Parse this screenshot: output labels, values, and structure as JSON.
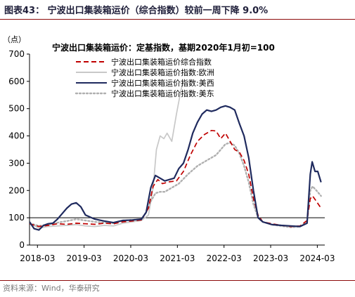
{
  "figure_title": "图表43：  宁波出口集装箱运价（综合指数）较前一周下降 9.0%",
  "source_note": "资料来源：Wind，华泰研究",
  "colors": {
    "composite": "#c00000",
    "europe": "#c8c8c8",
    "us_west": "#1f2a5e",
    "us_east": "#b0b0b0",
    "rule": "#8c0a0a"
  },
  "chart_data": {
    "type": "line",
    "title": "宁波出口集装箱运价：定基指数，基期2020年1月初=100",
    "ylabel": "（点）",
    "ylim": [
      0,
      700
    ],
    "yticks": [
      0,
      100,
      200,
      300,
      400,
      500,
      600,
      700
    ],
    "xlim": [
      2018.0,
      2024.33
    ],
    "xticks": [
      {
        "label": "2018-03",
        "x": 2018.17
      },
      {
        "label": "2019-03",
        "x": 2019.17
      },
      {
        "label": "2020-03",
        "x": 2020.17
      },
      {
        "label": "2021-03",
        "x": 2021.17
      },
      {
        "label": "2022-03",
        "x": 2022.17
      },
      {
        "label": "2023-03",
        "x": 2023.17
      },
      {
        "label": "2024-03",
        "x": 2024.17
      }
    ],
    "reference_line": 100,
    "legend_position": "top",
    "series": [
      {
        "name": "宁波出口集装箱运价综合指数",
        "style": "dashed",
        "color": "#c00000",
        "points": [
          [
            2018.0,
            78
          ],
          [
            2018.2,
            68
          ],
          [
            2018.4,
            72
          ],
          [
            2018.6,
            78
          ],
          [
            2018.8,
            76
          ],
          [
            2019.0,
            80
          ],
          [
            2019.2,
            78
          ],
          [
            2019.4,
            76
          ],
          [
            2019.6,
            80
          ],
          [
            2019.8,
            78
          ],
          [
            2020.0,
            85
          ],
          [
            2020.2,
            88
          ],
          [
            2020.4,
            92
          ],
          [
            2020.55,
            135
          ],
          [
            2020.65,
            215
          ],
          [
            2020.75,
            240
          ],
          [
            2020.85,
            225
          ],
          [
            2021.0,
            232
          ],
          [
            2021.15,
            235
          ],
          [
            2021.3,
            270
          ],
          [
            2021.45,
            330
          ],
          [
            2021.6,
            380
          ],
          [
            2021.75,
            405
          ],
          [
            2021.9,
            420
          ],
          [
            2022.0,
            418
          ],
          [
            2022.1,
            390
          ],
          [
            2022.2,
            410
          ],
          [
            2022.3,
            380
          ],
          [
            2022.4,
            350
          ],
          [
            2022.5,
            340
          ],
          [
            2022.6,
            310
          ],
          [
            2022.7,
            260
          ],
          [
            2022.8,
            170
          ],
          [
            2022.9,
            110
          ],
          [
            2023.0,
            85
          ],
          [
            2023.2,
            78
          ],
          [
            2023.4,
            72
          ],
          [
            2023.6,
            68
          ],
          [
            2023.8,
            70
          ],
          [
            2023.95,
            90
          ],
          [
            2024.02,
            170
          ],
          [
            2024.07,
            180
          ],
          [
            2024.15,
            160
          ],
          [
            2024.25,
            135
          ]
        ]
      },
      {
        "name": "宁波出口集装箱运价指数:欧洲",
        "style": "solid",
        "color": "#c8c8c8",
        "points": [
          [
            2018.0,
            80
          ],
          [
            2018.2,
            62
          ],
          [
            2018.4,
            68
          ],
          [
            2018.6,
            70
          ],
          [
            2018.8,
            72
          ],
          [
            2019.0,
            75
          ],
          [
            2019.2,
            70
          ],
          [
            2019.4,
            68
          ],
          [
            2019.6,
            72
          ],
          [
            2019.8,
            70
          ],
          [
            2020.0,
            80
          ],
          [
            2020.2,
            85
          ],
          [
            2020.4,
            90
          ],
          [
            2020.55,
            110
          ],
          [
            2020.65,
            210
          ],
          [
            2020.72,
            350
          ],
          [
            2020.8,
            400
          ],
          [
            2020.88,
            390
          ],
          [
            2020.95,
            410
          ],
          [
            2021.05,
            380
          ],
          [
            2021.15,
            480
          ],
          [
            2021.25,
            570
          ],
          [
            2021.3,
            600
          ]
        ]
      },
      {
        "name": "宁波出口集装箱运价指数:美西",
        "style": "solid",
        "color": "#1f2a5e",
        "points": [
          [
            2018.0,
            85
          ],
          [
            2018.1,
            60
          ],
          [
            2018.2,
            55
          ],
          [
            2018.3,
            72
          ],
          [
            2018.4,
            78
          ],
          [
            2018.5,
            80
          ],
          [
            2018.6,
            95
          ],
          [
            2018.7,
            115
          ],
          [
            2018.8,
            135
          ],
          [
            2018.9,
            150
          ],
          [
            2019.0,
            155
          ],
          [
            2019.1,
            140
          ],
          [
            2019.2,
            110
          ],
          [
            2019.4,
            95
          ],
          [
            2019.6,
            88
          ],
          [
            2019.8,
            82
          ],
          [
            2020.0,
            90
          ],
          [
            2020.2,
            92
          ],
          [
            2020.4,
            95
          ],
          [
            2020.5,
            120
          ],
          [
            2020.6,
            210
          ],
          [
            2020.7,
            255
          ],
          [
            2020.8,
            245
          ],
          [
            2020.9,
            235
          ],
          [
            2021.0,
            240
          ],
          [
            2021.1,
            245
          ],
          [
            2021.2,
            280
          ],
          [
            2021.3,
            300
          ],
          [
            2021.4,
            350
          ],
          [
            2021.5,
            410
          ],
          [
            2021.6,
            450
          ],
          [
            2021.7,
            480
          ],
          [
            2021.8,
            495
          ],
          [
            2021.9,
            490
          ],
          [
            2022.0,
            495
          ],
          [
            2022.1,
            505
          ],
          [
            2022.2,
            510
          ],
          [
            2022.3,
            505
          ],
          [
            2022.4,
            495
          ],
          [
            2022.5,
            445
          ],
          [
            2022.6,
            400
          ],
          [
            2022.7,
            320
          ],
          [
            2022.8,
            200
          ],
          [
            2022.9,
            100
          ],
          [
            2023.0,
            85
          ],
          [
            2023.2,
            75
          ],
          [
            2023.4,
            72
          ],
          [
            2023.6,
            70
          ],
          [
            2023.8,
            68
          ],
          [
            2023.95,
            80
          ],
          [
            2024.02,
            260
          ],
          [
            2024.06,
            305
          ],
          [
            2024.12,
            270
          ],
          [
            2024.18,
            270
          ],
          [
            2024.25,
            230
          ]
        ]
      },
      {
        "name": "宁波出口集装箱运价指数:美东",
        "style": "dotted",
        "color": "#b0b0b0",
        "points": [
          [
            2018.0,
            80
          ],
          [
            2018.2,
            70
          ],
          [
            2018.4,
            75
          ],
          [
            2018.6,
            82
          ],
          [
            2018.8,
            88
          ],
          [
            2019.0,
            95
          ],
          [
            2019.2,
            90
          ],
          [
            2019.4,
            85
          ],
          [
            2019.6,
            82
          ],
          [
            2019.8,
            80
          ],
          [
            2020.0,
            90
          ],
          [
            2020.2,
            92
          ],
          [
            2020.4,
            95
          ],
          [
            2020.5,
            120
          ],
          [
            2020.6,
            160
          ],
          [
            2020.7,
            190
          ],
          [
            2020.8,
            195
          ],
          [
            2020.9,
            195
          ],
          [
            2021.0,
            205
          ],
          [
            2021.2,
            225
          ],
          [
            2021.4,
            260
          ],
          [
            2021.6,
            290
          ],
          [
            2021.8,
            310
          ],
          [
            2022.0,
            330
          ],
          [
            2022.2,
            370
          ],
          [
            2022.3,
            375
          ],
          [
            2022.4,
            365
          ],
          [
            2022.5,
            335
          ],
          [
            2022.6,
            290
          ],
          [
            2022.7,
            230
          ],
          [
            2022.8,
            150
          ],
          [
            2022.9,
            100
          ],
          [
            2023.0,
            85
          ],
          [
            2023.2,
            75
          ],
          [
            2023.4,
            70
          ],
          [
            2023.6,
            65
          ],
          [
            2023.8,
            68
          ],
          [
            2023.95,
            85
          ],
          [
            2024.02,
            200
          ],
          [
            2024.07,
            215
          ],
          [
            2024.15,
            200
          ],
          [
            2024.25,
            180
          ]
        ]
      }
    ]
  }
}
